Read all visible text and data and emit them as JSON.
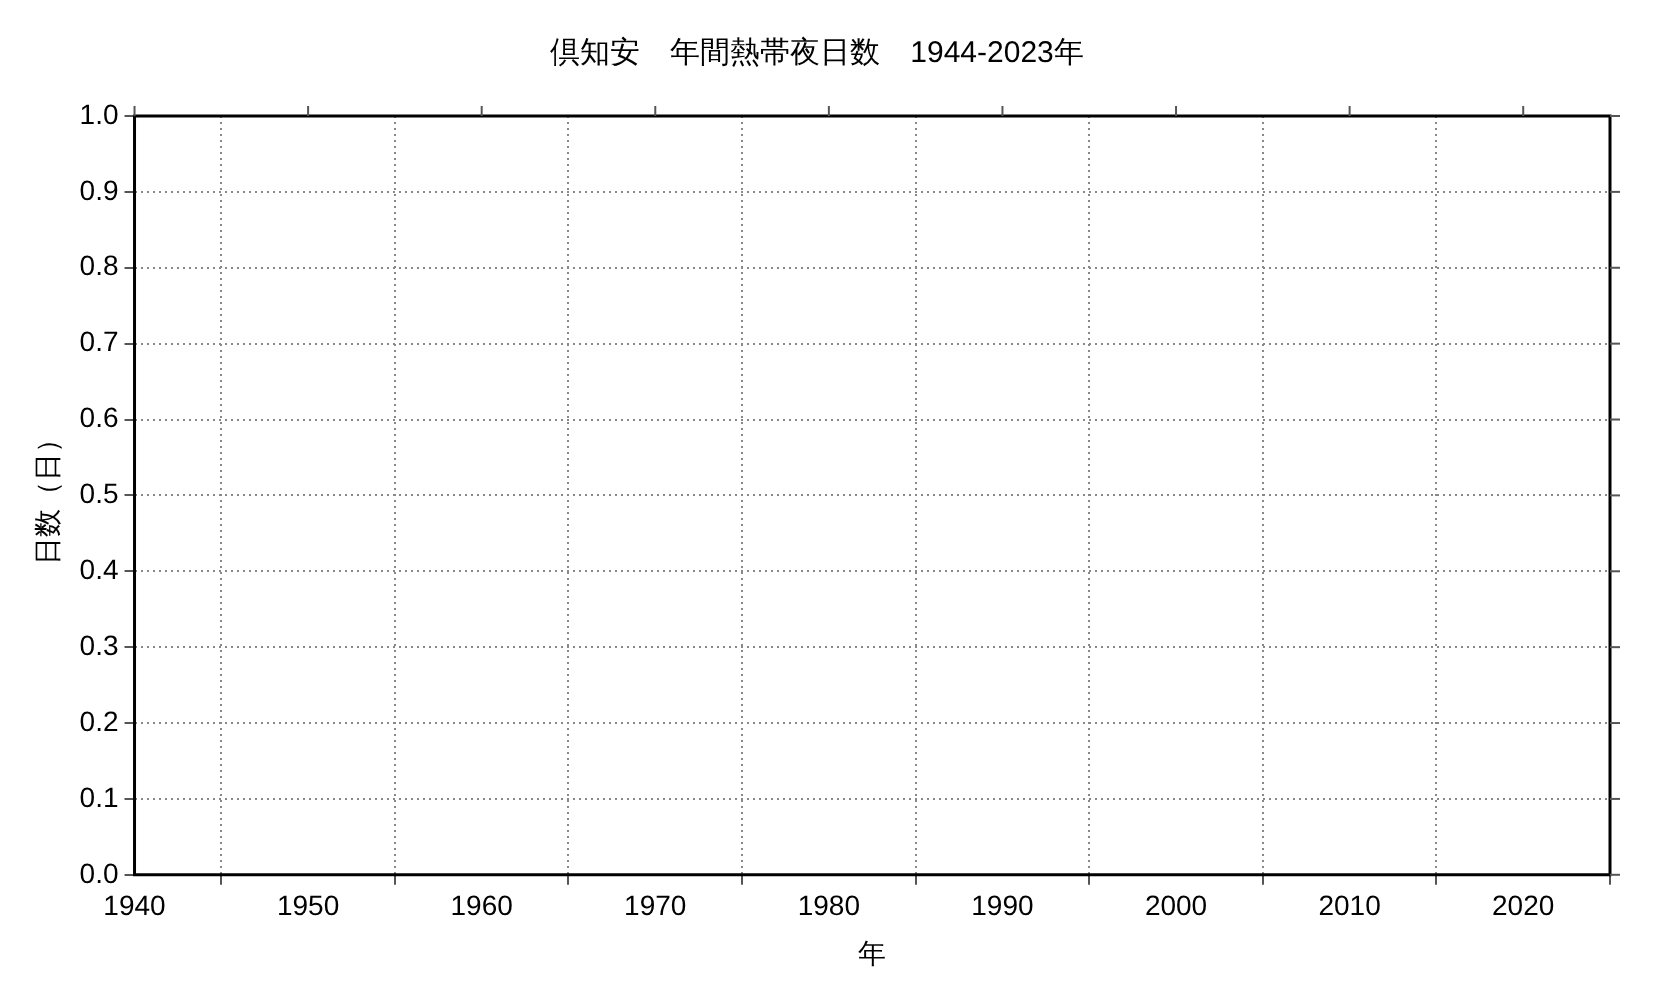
{
  "chart_data": {
    "type": "bar",
    "title": "倶知安　年間熱帯夜日数　1944-2023年",
    "xlabel": "年",
    "ylabel": "日数（日）",
    "xlim": [
      1940,
      2025
    ],
    "xticks": [
      1940,
      1950,
      1960,
      1970,
      1980,
      1990,
      2000,
      2010,
      2020
    ],
    "ylim": [
      0,
      1
    ],
    "yticks": [
      {
        "value": 0,
        "label": "0.0"
      },
      {
        "value": 0.1,
        "label": "0.1"
      },
      {
        "value": 0.2,
        "label": "0.2"
      },
      {
        "value": 0.3,
        "label": "0.3"
      },
      {
        "value": 0.4,
        "label": "0.4"
      },
      {
        "value": 0.5,
        "label": "0.5"
      },
      {
        "value": 0.6,
        "label": "0.6"
      },
      {
        "value": 0.7,
        "label": "0.7"
      },
      {
        "value": 0.8,
        "label": "0.8"
      },
      {
        "value": 0.9,
        "label": "0.9"
      },
      {
        "value": 1,
        "label": "1.0"
      }
    ],
    "grid": true,
    "legend": false
  }
}
